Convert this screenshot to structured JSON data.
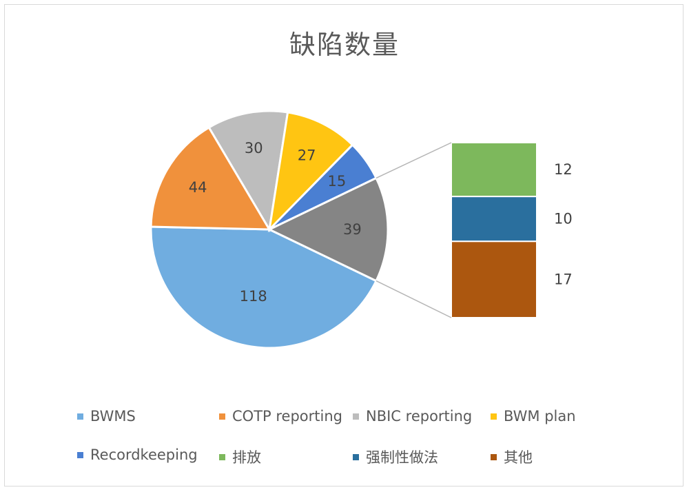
{
  "chart_data": {
    "type": "bar-of-pie",
    "title": "缺陷数量",
    "pie": [
      {
        "label": "BWMS",
        "value": 118,
        "color": "#70ADE0"
      },
      {
        "label": "COTP reporting",
        "value": 44,
        "color": "#F0913C"
      },
      {
        "label": "NBIC reporting",
        "value": 30,
        "color": "#BDBDBD"
      },
      {
        "label": "BWM plan",
        "value": 27,
        "color": "#FFC512"
      },
      {
        "label": "Recordkeeping",
        "value": 15,
        "color": "#4A7FD2"
      },
      {
        "label": "",
        "value": 39,
        "color": "#858585"
      }
    ],
    "bar": [
      {
        "label": "排放",
        "value": 12,
        "color": "#7DB85C"
      },
      {
        "label": "强制性做法",
        "value": 10,
        "color": "#2A6F9E"
      },
      {
        "label": "其他",
        "value": 17,
        "color": "#AC570F"
      }
    ],
    "legend": [
      {
        "label": "BWMS",
        "color": "#70ADE0"
      },
      {
        "label": "COTP reporting",
        "color": "#F0913C"
      },
      {
        "label": "NBIC reporting",
        "color": "#BDBDBD"
      },
      {
        "label": "BWM plan",
        "color": "#FFC512"
      },
      {
        "label": "Recordkeeping",
        "color": "#4A7FD2"
      },
      {
        "label": "排放",
        "color": "#7DB85C"
      },
      {
        "label": "强制性做法",
        "color": "#2A6F9E"
      },
      {
        "label": "其他",
        "color": "#AC570F"
      }
    ],
    "legend_position": "bottom"
  }
}
